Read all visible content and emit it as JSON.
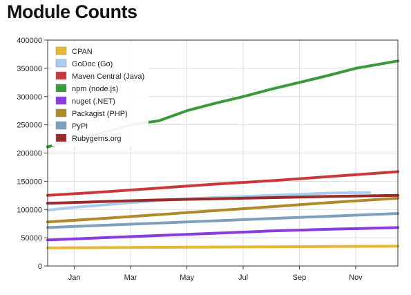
{
  "page_title": "Module Counts",
  "chart_data": {
    "type": "line",
    "title": "Module Counts",
    "xlabel": "",
    "ylabel": "",
    "ylim": [
      0,
      400000
    ],
    "y_ticks": [
      0,
      50000,
      100000,
      150000,
      200000,
      250000,
      300000,
      350000,
      400000
    ],
    "x_ticks": [
      "Jan",
      "Mar",
      "May",
      "Jul",
      "Sep",
      "Nov"
    ],
    "x_tick_months": [
      1,
      3,
      5,
      7,
      9,
      11
    ],
    "xlim_months": [
      0.05,
      12.5
    ],
    "grid": true,
    "legend_position": "top-left",
    "series": [
      {
        "name": "CPAN",
        "color": "#e8b834",
        "x": [
          0.05,
          2,
          4,
          6,
          8,
          10,
          12.5
        ],
        "y": [
          32000,
          32500,
          33000,
          33500,
          34000,
          34500,
          35000
        ]
      },
      {
        "name": "GoDoc (Go)",
        "color": "#a8cdee",
        "x": [
          0.05,
          1,
          2,
          3,
          4,
          5,
          6,
          7,
          8,
          9,
          10,
          11.5
        ],
        "y": [
          99000,
          104000,
          108000,
          112000,
          116000,
          119000,
          121000,
          123000,
          125000,
          127000,
          129000,
          130000
        ]
      },
      {
        "name": "Maven Central (Java)",
        "color": "#c9393a",
        "x": [
          0.05,
          2,
          4,
          6,
          8,
          10,
          12.5
        ],
        "y": [
          125000,
          131000,
          138000,
          145000,
          151000,
          158000,
          167000
        ]
      },
      {
        "name": "npm (node.js)",
        "color": "#3a9a3a",
        "x": [
          0.05,
          1,
          2,
          3,
          4,
          5,
          6,
          7,
          8,
          9,
          10,
          11,
          12.5
        ],
        "y": [
          211000,
          222000,
          236000,
          250000,
          257000,
          275000,
          288000,
          300000,
          313000,
          325000,
          337000,
          350000,
          363000
        ]
      },
      {
        "name": "nuget (.NET)",
        "color": "#8a3ce0",
        "x": [
          0.05,
          2,
          4,
          6,
          8,
          10,
          12.5
        ],
        "y": [
          46000,
          50000,
          54000,
          58000,
          62000,
          65000,
          68000
        ]
      },
      {
        "name": "Packagist (PHP)",
        "color": "#b08a2a",
        "x": [
          0.05,
          2,
          4,
          6,
          8,
          10,
          12.5
        ],
        "y": [
          78000,
          84000,
          91000,
          98000,
          105000,
          112000,
          120000
        ]
      },
      {
        "name": "PyPI",
        "color": "#7f9fbf",
        "x": [
          0.05,
          2,
          4,
          6,
          8,
          10,
          12.5
        ],
        "y": [
          68000,
          72000,
          76000,
          80000,
          84000,
          88000,
          93000
        ]
      },
      {
        "name": "Rubygems.org",
        "color": "#9b2a2a",
        "x": [
          0.05,
          2,
          4,
          6,
          8,
          10,
          12.5
        ],
        "y": [
          111000,
          114000,
          117000,
          119000,
          121000,
          123000,
          125000
        ]
      }
    ]
  }
}
